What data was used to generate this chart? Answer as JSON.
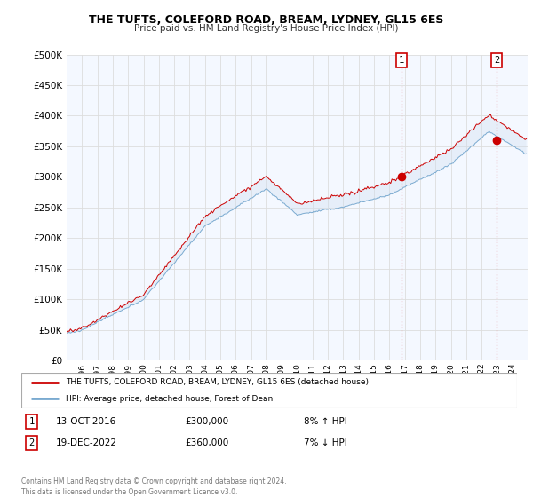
{
  "title": "THE TUFTS, COLEFORD ROAD, BREAM, LYDNEY, GL15 6ES",
  "subtitle": "Price paid vs. HM Land Registry's House Price Index (HPI)",
  "ylim": [
    0,
    500000
  ],
  "yticks": [
    0,
    50000,
    100000,
    150000,
    200000,
    250000,
    300000,
    350000,
    400000,
    450000,
    500000
  ],
  "line1_color": "#cc0000",
  "line2_color": "#7aaad0",
  "fill_color": "#ccddf0",
  "background_color": "#f4f8ff",
  "grid_color": "#dddddd",
  "vline_color": "#e08080",
  "legend_label1": "THE TUFTS, COLEFORD ROAD, BREAM, LYDNEY, GL15 6ES (detached house)",
  "legend_label2": "HPI: Average price, detached house, Forest of Dean",
  "event1_label": "1",
  "event1_date": "13-OCT-2016",
  "event1_price": "£300,000",
  "event1_hpi": "8% ↑ HPI",
  "event1_x": 2016.78,
  "event1_y": 300000,
  "event2_label": "2",
  "event2_date": "19-DEC-2022",
  "event2_price": "£360,000",
  "event2_hpi": "7% ↓ HPI",
  "event2_x": 2022.97,
  "event2_y": 360000,
  "footer": "Contains HM Land Registry data © Crown copyright and database right 2024.\nThis data is licensed under the Open Government Licence v3.0.",
  "xmin": 1995.0,
  "xmax": 2025.0
}
